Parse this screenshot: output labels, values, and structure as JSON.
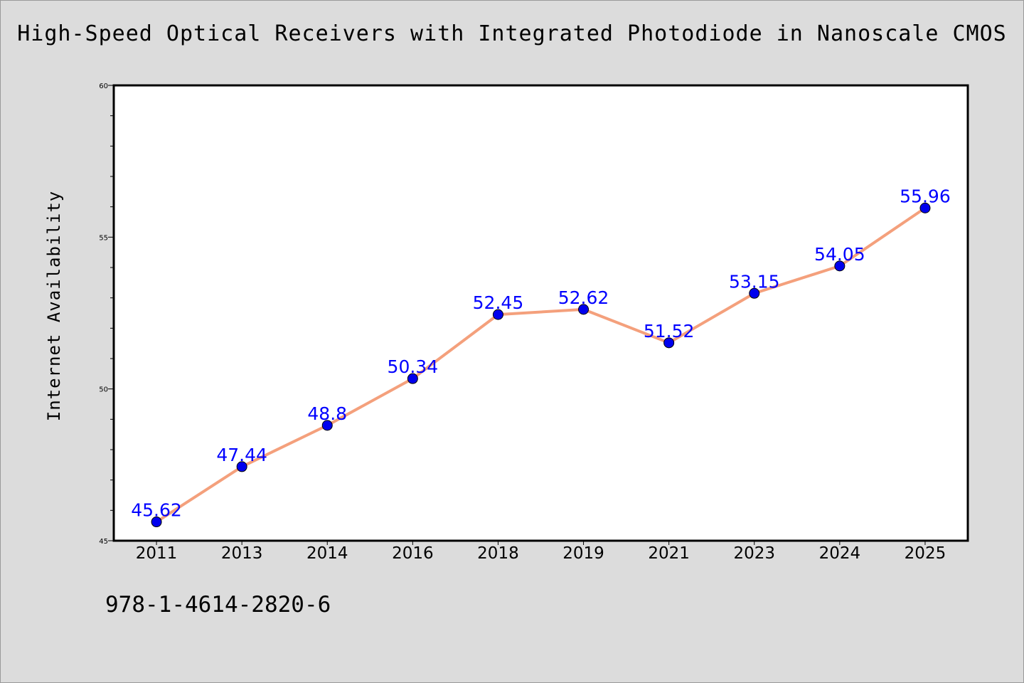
{
  "title": "High-Speed Optical Receivers with Integrated Photodiode in Nanoscale CMOS",
  "footer_text": "978-1-4614-2820-6",
  "colors": {
    "background": "#dcdcdc",
    "plot_area": "#ffffff",
    "line": "#f4a07c",
    "marker": "#0000ee",
    "label": "#0000ff"
  },
  "chart_data": {
    "type": "line",
    "title": "High-Speed Optical Receivers with Integrated Photodiode in Nanoscale CMOS",
    "xlabel": "",
    "ylabel": "Internet Availability",
    "categories": [
      "2011",
      "2013",
      "2014",
      "2016",
      "2018",
      "2019",
      "2021",
      "2023",
      "2024",
      "2025"
    ],
    "values": [
      45.62,
      47.44,
      48.8,
      50.34,
      52.45,
      52.62,
      51.52,
      53.15,
      54.05,
      55.96
    ],
    "data_labels": [
      "45.62",
      "47.44",
      "48.8",
      "50.34",
      "52.45",
      "52.62",
      "51.52",
      "53.15",
      "54.05",
      "55.96"
    ],
    "ylim": [
      45,
      60
    ],
    "yticks": [
      45,
      50,
      55,
      60
    ],
    "yticks_minor_step": 1,
    "grid": false,
    "legend": "none"
  }
}
